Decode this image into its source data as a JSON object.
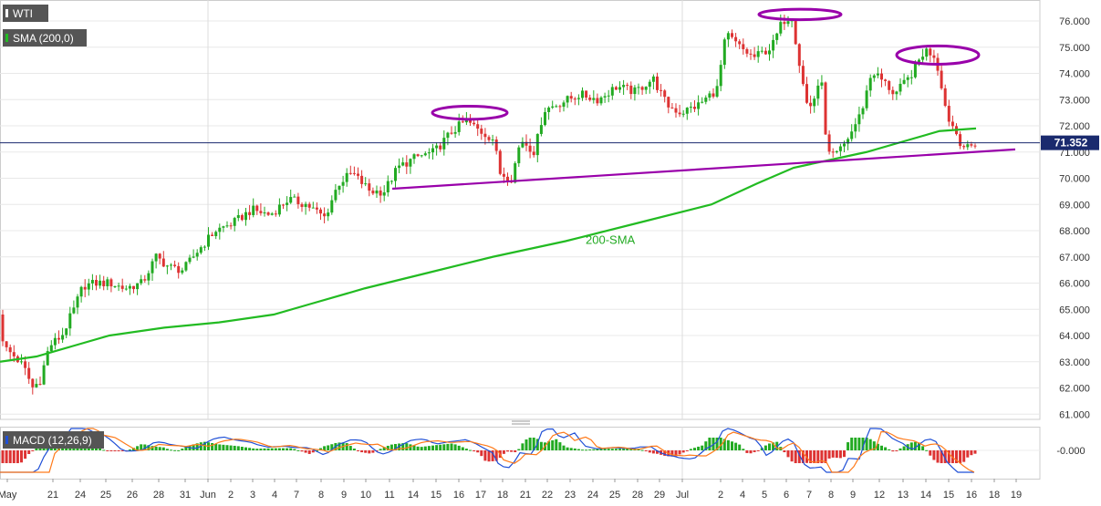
{
  "chart_data": [
    {
      "type": "candlestick",
      "symbol_label": "WTI",
      "indicator_label": "SMA (200,0)",
      "annotation_label": "200-SMA",
      "current_price_label": "71.352",
      "current_price": 71.352,
      "ylim": [
        60.8,
        76.8
      ],
      "y_ticks": [
        "76.000",
        "75.000",
        "74.000",
        "73.000",
        "72.000",
        "71.000",
        "70.000",
        "69.000",
        "68.000",
        "67.000",
        "66.000",
        "65.000",
        "64.000",
        "63.000",
        "62.000",
        "61.000"
      ],
      "y_tick_values": [
        76,
        75,
        74,
        73,
        72,
        71,
        70,
        69,
        68,
        67,
        66,
        65,
        64,
        63,
        62,
        61
      ],
      "x_ticks": [
        "May",
        "21",
        "24",
        "25",
        "26",
        "28",
        "31",
        "Jun",
        "2",
        "3",
        "4",
        "7",
        "8",
        "9",
        "10",
        "11",
        "14",
        "15",
        "16",
        "17",
        "18",
        "21",
        "22",
        "23",
        "24",
        "25",
        "28",
        "29",
        "Jul",
        "2",
        "4",
        "5",
        "6",
        "7",
        "8",
        "9",
        "12",
        "13",
        "14",
        "15",
        "16",
        "18",
        "19"
      ],
      "colors": {
        "up": "#22aa22",
        "down": "#dd3333",
        "sma": "#22bb22",
        "trendline": "#9900aa",
        "ellipse": "#9900aa",
        "price_line": "#1a2a6e",
        "badge": "#555555",
        "grid": "#e8e8e8"
      },
      "grid": true,
      "sma200_points": [
        [
          0,
          63.0
        ],
        [
          40,
          63.2
        ],
        [
          80,
          63.6
        ],
        [
          120,
          64.0
        ],
        [
          180,
          64.3
        ],
        [
          240,
          64.5
        ],
        [
          300,
          64.8
        ],
        [
          340,
          65.2
        ],
        [
          400,
          65.8
        ],
        [
          470,
          66.4
        ],
        [
          540,
          67.0
        ],
        [
          620,
          67.6
        ],
        [
          700,
          68.3
        ],
        [
          780,
          69.0
        ],
        [
          830,
          69.8
        ],
        [
          870,
          70.4
        ],
        [
          910,
          70.7
        ],
        [
          950,
          71.0
        ],
        [
          990,
          71.4
        ],
        [
          1030,
          71.8
        ],
        [
          1070,
          71.9
        ]
      ],
      "trendline": {
        "x1": 430,
        "y1": 69.6,
        "x2": 1113,
        "y2": 71.1
      },
      "ellipses": [
        {
          "cx": 877,
          "cy": 76.25,
          "rx": 45,
          "ry": 0.2
        },
        {
          "cx": 515,
          "cy": 72.5,
          "rx": 41,
          "ry": 0.25
        },
        {
          "cx": 1028,
          "cy": 74.7,
          "rx": 45,
          "ry": 0.35
        }
      ],
      "macd_label": "MACD (12,26,9)",
      "macd_tick_label": "-0.000"
    }
  ]
}
